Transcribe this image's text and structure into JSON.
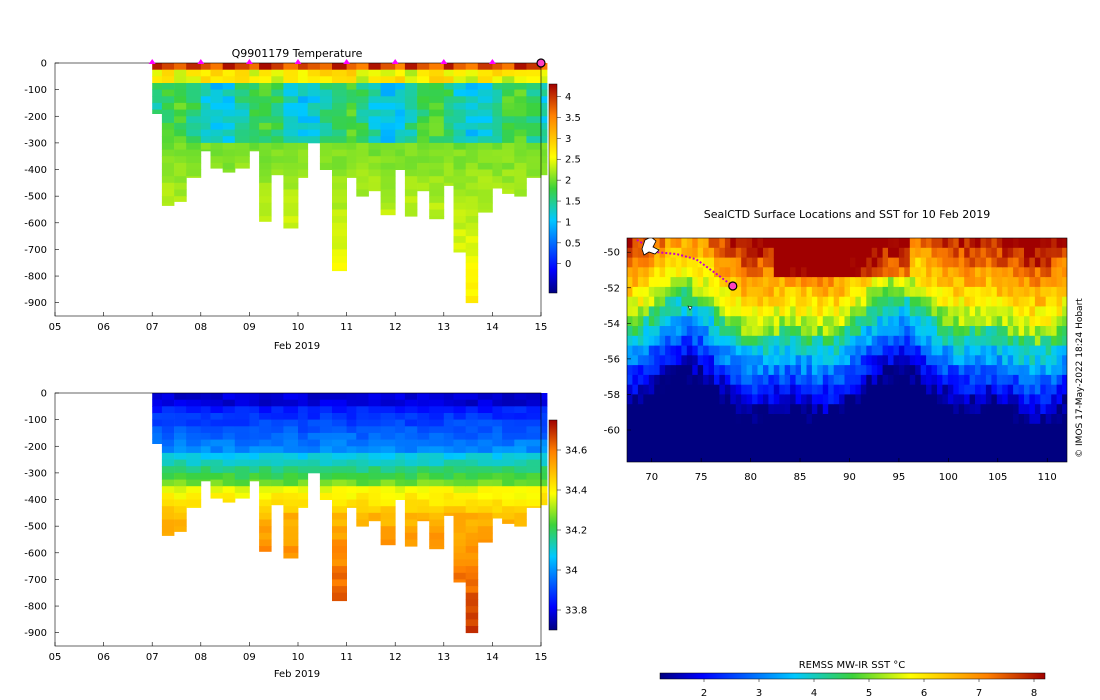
{
  "charts": {
    "temperature": {
      "title": "Q9901179  Temperature",
      "xlabel": "Feb 2019",
      "xticks": [
        "05",
        "06",
        "07",
        "08",
        "09",
        "10",
        "11",
        "12",
        "13",
        "14",
        "15"
      ],
      "yticks": [
        "0",
        "-100",
        "-200",
        "-300",
        "-400",
        "-500",
        "-600",
        "-700",
        "-800",
        "-900"
      ],
      "colorbar_ticks": [
        "4",
        "3.5",
        "3",
        "2.5",
        "2",
        "1.5",
        "1",
        "0.5",
        "0"
      ]
    },
    "salinity": {
      "title": "",
      "xlabel": "Feb 2019",
      "xticks": [
        "05",
        "06",
        "07",
        "08",
        "09",
        "10",
        "11",
        "12",
        "13",
        "14",
        "15"
      ],
      "yticks": [
        "0",
        "-100",
        "-200",
        "-300",
        "-400",
        "-500",
        "-600",
        "-700",
        "-800",
        "-900"
      ],
      "colorbar_ticks": [
        "34.6",
        "34.4",
        "34.2",
        "34",
        "33.8"
      ]
    },
    "map": {
      "title": "SealCTD Surface Locations and SST for 10 Feb 2019",
      "xticks": [
        "70",
        "75",
        "80",
        "85",
        "90",
        "95",
        "100",
        "105",
        "110"
      ],
      "yticks": [
        "-50",
        "-52",
        "-54",
        "-56",
        "-58",
        "-60"
      ],
      "credit": "© IMOS 17-May-2022 18:24 Hobart",
      "colorbar_label": "REMSS MW-IR SST °C",
      "colorbar_ticks": [
        "2",
        "3",
        "4",
        "5",
        "6",
        "7",
        "8"
      ]
    }
  },
  "chart_data": [
    {
      "type": "heatmap",
      "title": "Q9901179  Temperature",
      "xlabel": "Feb 2019",
      "ylabel": "",
      "x_unit": "day of Feb 2019",
      "xlim": [
        5,
        15
      ],
      "ylim": [
        -950,
        0
      ],
      "clim": [
        -0.7,
        4.3
      ],
      "profile_days": [
        7.0,
        7.2,
        7.45,
        7.7,
        8.0,
        8.2,
        8.45,
        8.7,
        9.0,
        9.2,
        9.45,
        9.7,
        10.0,
        10.2,
        10.45,
        10.7,
        11.0,
        11.2,
        11.45,
        11.7,
        12.0,
        12.2,
        12.45,
        12.7,
        13.0,
        13.2,
        13.45,
        13.7,
        14.0,
        14.2,
        14.45,
        14.7,
        15.0
      ],
      "max_depths": [
        190,
        535,
        520,
        430,
        330,
        395,
        410,
        395,
        330,
        595,
        420,
        620,
        430,
        300,
        400,
        780,
        430,
        500,
        480,
        570,
        400,
        575,
        480,
        585,
        460,
        710,
        900,
        560,
        470,
        490,
        500,
        430,
        420
      ],
      "surface_markers_day": [
        7,
        8,
        9,
        10,
        11,
        12,
        13,
        14,
        15
      ],
      "legend": "",
      "annotations": [
        "magenta surface markers at profile dates"
      ]
    },
    {
      "type": "heatmap",
      "title": "",
      "xlabel": "Feb 2019",
      "ylabel": "",
      "xlim": [
        5,
        15
      ],
      "ylim": [
        -950,
        0
      ],
      "clim": [
        33.7,
        34.75
      ],
      "profile_days": [
        7.0,
        7.2,
        7.45,
        7.7,
        8.0,
        8.2,
        8.45,
        8.7,
        9.0,
        9.2,
        9.45,
        9.7,
        10.0,
        10.2,
        10.45,
        10.7,
        11.0,
        11.2,
        11.45,
        11.7,
        12.0,
        12.2,
        12.45,
        12.7,
        13.0,
        13.2,
        13.45,
        13.7,
        14.0,
        14.2,
        14.45,
        14.7,
        15.0
      ],
      "max_depths": [
        190,
        535,
        520,
        430,
        330,
        395,
        410,
        395,
        330,
        595,
        420,
        620,
        430,
        300,
        400,
        780,
        430,
        500,
        480,
        570,
        400,
        575,
        480,
        585,
        460,
        710,
        900,
        560,
        470,
        490,
        500,
        430,
        420
      ]
    },
    {
      "type": "heatmap",
      "title": "SealCTD Surface Locations and SST for 10 Feb 2019",
      "xlabel": "",
      "ylabel": "",
      "xlim": [
        67.5,
        112
      ],
      "ylim": [
        -61.8,
        -49.2
      ],
      "clim": [
        1.2,
        8.2
      ],
      "colorbar_label": "REMSS MW-IR SST °C",
      "track": [
        [
          68.5,
          -49.3
        ],
        [
          70.5,
          -50.0
        ],
        [
          72.5,
          -50.1
        ],
        [
          74.5,
          -50.4
        ],
        [
          76.5,
          -51.2
        ],
        [
          78.2,
          -51.9
        ]
      ],
      "current_position": [
        78.2,
        -51.9
      ]
    }
  ]
}
